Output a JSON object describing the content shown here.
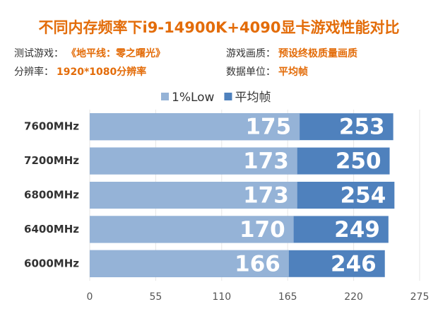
{
  "chart_data": {
    "type": "bar",
    "orientation": "horizontal",
    "title": "不同内存频率下i9-14900K+4090显卡游戏性能对比",
    "info": [
      {
        "label": "测试游戏：",
        "value": "《地平线：零之曙光》"
      },
      {
        "label": "游戏画质：",
        "value": "预设终极质量画质"
      },
      {
        "label": "分辨率：",
        "value": "1920*1080分辨率"
      },
      {
        "label": "数据单位：",
        "value": "平均帧"
      }
    ],
    "categories": [
      "7600MHz",
      "7200MHz",
      "6800MHz",
      "6400MHz",
      "6000MHz"
    ],
    "series": [
      {
        "name": "1%Low",
        "color": "#95b3d7",
        "values": [
          175,
          173,
          173,
          170,
          166
        ]
      },
      {
        "name": "平均帧",
        "color": "#4f81bd",
        "values": [
          253,
          250,
          254,
          249,
          246
        ]
      }
    ],
    "xlim": [
      0,
      275
    ],
    "xticks": [
      0,
      55,
      110,
      165,
      220,
      275
    ],
    "grid": true
  }
}
